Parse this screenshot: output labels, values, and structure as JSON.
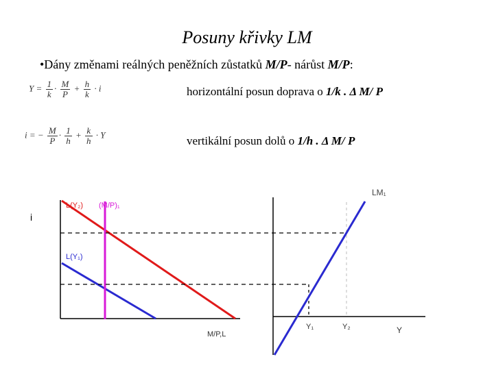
{
  "title": "Posuny křivky LM",
  "bullet": {
    "text": "•Dány změnami reálných peněžních zůstatků ",
    "highlight": "M/P",
    "rest": "- nárůst ",
    "highlight2": "M/P",
    "end": ":"
  },
  "equation1": {
    "lhs": "Y =",
    "t1_num": "1",
    "t1_den": "k",
    "dot1": "·",
    "t2_num": "M",
    "t2_den": "P",
    "plus": "+",
    "t3_num": "h",
    "t3_den": "k",
    "tail": "· i"
  },
  "equation2": {
    "lhs": "i = −",
    "t1_num": "M",
    "t1_den": "P",
    "dot1": "·",
    "t2_num": "1",
    "t2_den": "h",
    "plus": "+",
    "t3_num": "k",
    "t3_den": "h",
    "tail": "· Y"
  },
  "desc1": {
    "text": "horizontální posun doprava o ",
    "highlight": "1/k . ",
    "delta": "Δ",
    "end": " M/ P"
  },
  "desc2": {
    "text": "vertikální posun dolů o ",
    "highlight": "1/h . ",
    "delta": "Δ",
    "end": " M/ P"
  },
  "left_graph": {
    "y_label": "i",
    "x_label": "M/P,L",
    "l_y2": "L(Y₂)",
    "mp1": "(M/P)₁",
    "l_y1": "L(Y₁)"
  },
  "right_graph": {
    "lm1": "LM₁",
    "y1": "Y₁",
    "y2": "Y₂",
    "x_label": "Y"
  },
  "colors": {
    "red": "#e01a1a",
    "blue": "#2a2ad0",
    "magenta": "#d81ad8",
    "black": "#000000",
    "dashed": "#000000",
    "gray_dashed": "#c8c8c8"
  }
}
